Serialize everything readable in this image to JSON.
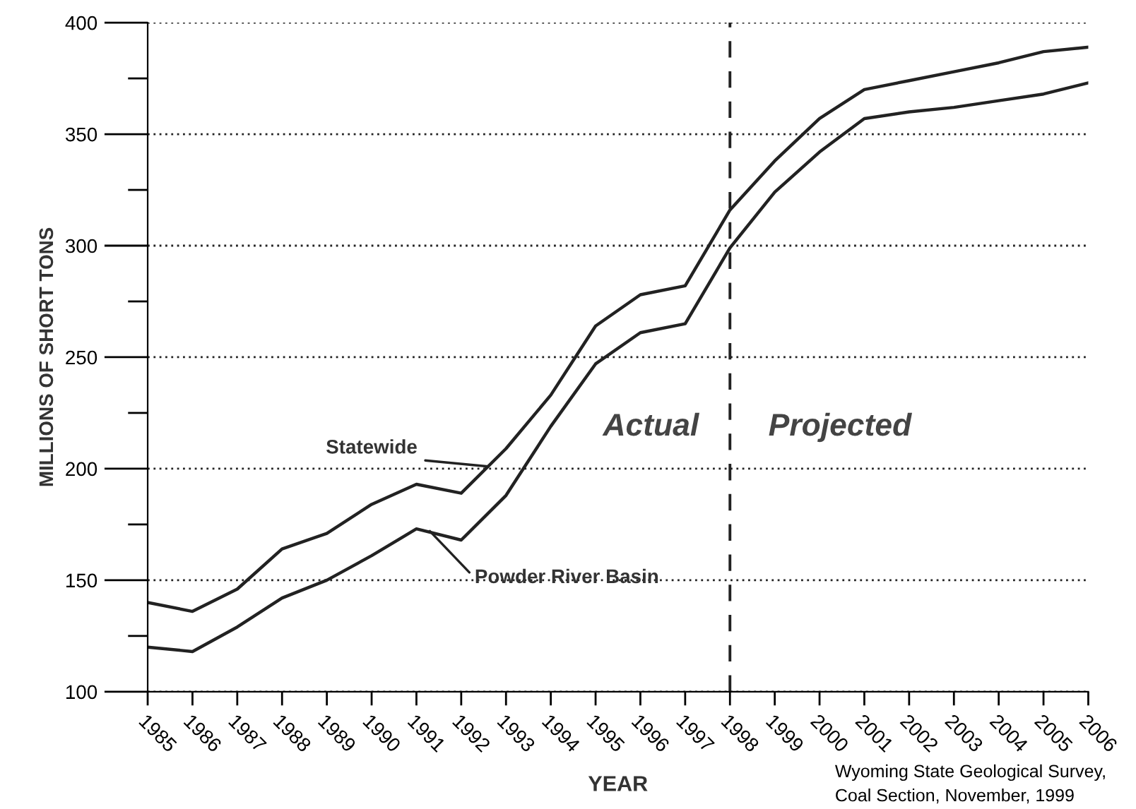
{
  "chart_data": {
    "type": "line",
    "xlabel": "YEAR",
    "ylabel": "MILLIONS OF SHORT TONS",
    "x": [
      1985,
      1986,
      1987,
      1988,
      1989,
      1990,
      1991,
      1992,
      1993,
      1994,
      1995,
      1996,
      1997,
      1998,
      1999,
      2000,
      2001,
      2002,
      2003,
      2004,
      2005,
      2006
    ],
    "series": [
      {
        "name": "Statewide",
        "color": "#222222",
        "values": [
          140,
          136,
          146,
          164,
          171,
          184,
          193,
          189,
          209,
          233,
          264,
          278,
          282,
          316,
          338,
          357,
          370,
          374,
          378,
          382,
          387,
          389
        ]
      },
      {
        "name": "Powder River Basin",
        "color": "#222222",
        "values": [
          120,
          118,
          129,
          142,
          150,
          161,
          173,
          168,
          188,
          219,
          247,
          261,
          265,
          299,
          324,
          342,
          357,
          360,
          362,
          365,
          368,
          373
        ]
      }
    ],
    "xlim": [
      1985,
      2006
    ],
    "xticks": [
      1985,
      1986,
      1987,
      1988,
      1989,
      1990,
      1991,
      1992,
      1993,
      1994,
      1995,
      1996,
      1997,
      1998,
      1999,
      2000,
      2001,
      2002,
      2003,
      2004,
      2005,
      2006
    ],
    "ylim": [
      100,
      400
    ],
    "yticks": [
      100,
      {
        "value": 125,
        "label": null
      },
      150,
      {
        "value": 175,
        "label": null
      },
      200,
      {
        "value": 225,
        "label": null
      },
      250,
      {
        "value": 275,
        "label": null
      },
      300,
      {
        "value": 325,
        "label": null
      },
      350,
      {
        "value": 375,
        "label": null
      },
      400
    ],
    "grid": "y",
    "ref_lines": [
      {
        "axis": "x",
        "value": 1998,
        "color": "#222222",
        "line_style": "dashed"
      }
    ],
    "annotations": [
      "Actual",
      "Projected",
      "Wyoming State Geological Survey,\nCoal Section, November, 1999"
    ],
    "line_style": "solid",
    "marker": "none",
    "legend": false
  }
}
